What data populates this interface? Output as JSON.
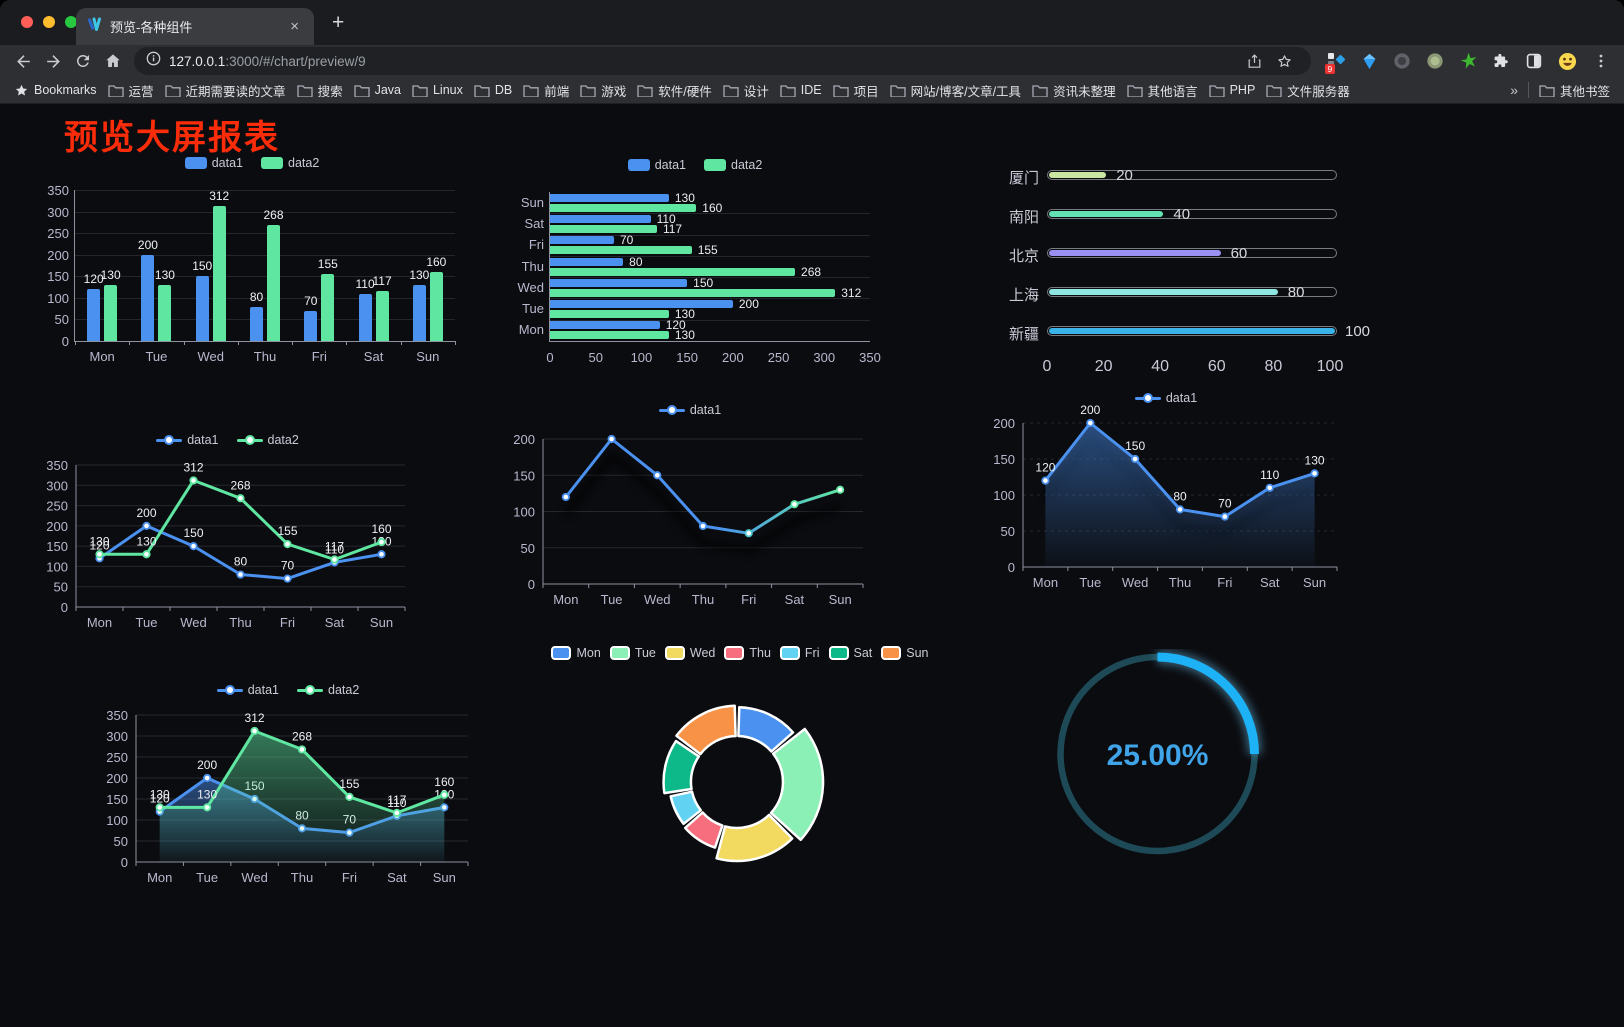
{
  "browser": {
    "tab_title": "预览-各种组件",
    "close_tab_label": "×",
    "new_tab_label": "+",
    "url_host": "127.0.0.1",
    "url_rest": ":3000/#/chart/preview/9",
    "extensions_badge": "9",
    "bookmarks_bar": {
      "star_label": "Bookmarks",
      "folders": [
        "运营",
        "近期需要读的文章",
        "搜索",
        "Java",
        "Linux",
        "DB",
        "前端",
        "游戏",
        "软件/硬件",
        "设计",
        "IDE",
        "项目",
        "网站/博客/文章/工具",
        "资讯未整理",
        "其他语言",
        "PHP",
        "文件服务器"
      ],
      "overflow": "»",
      "other_bookmarks": "其他书签"
    }
  },
  "page": {
    "title": "预览大屏报表",
    "title_color": "#fb2c09",
    "background": "#0b0c10"
  },
  "chart_data": [
    {
      "id": "grouped-bar",
      "type": "bar",
      "orientation": "vertical",
      "legend_position": "top",
      "categories": [
        "Mon",
        "Tue",
        "Wed",
        "Thu",
        "Fri",
        "Sat",
        "Sun"
      ],
      "series": [
        {
          "name": "data1",
          "color": "#4a91f0",
          "values": [
            120,
            200,
            150,
            80,
            70,
            110,
            130
          ]
        },
        {
          "name": "data2",
          "color": "#5fe7a2",
          "values": [
            130,
            130,
            312,
            268,
            155,
            117,
            160
          ]
        }
      ],
      "ylim": [
        0,
        350
      ],
      "yticks": [
        0,
        50,
        100,
        150,
        200,
        250,
        300,
        350
      ],
      "grid": true
    },
    {
      "id": "horizontal-bar",
      "type": "bar",
      "orientation": "horizontal",
      "legend_position": "top",
      "categories": [
        "Mon",
        "Tue",
        "Wed",
        "Thu",
        "Fri",
        "Sat",
        "Sun"
      ],
      "series": [
        {
          "name": "data1",
          "color": "#4a91f0",
          "values": [
            120,
            200,
            150,
            80,
            70,
            110,
            130
          ]
        },
        {
          "name": "data2",
          "color": "#5fe7a2",
          "values": [
            130,
            130,
            312,
            268,
            155,
            117,
            160
          ]
        }
      ],
      "xlim": [
        0,
        350
      ],
      "xticks": [
        0,
        50,
        100,
        150,
        200,
        250,
        300,
        350
      ],
      "grid": true
    },
    {
      "id": "progress",
      "type": "bar",
      "orientation": "horizontal",
      "style": "capsule-progress",
      "categories": [
        "厦门",
        "南阳",
        "北京",
        "上海",
        "新疆"
      ],
      "values": [
        20,
        40,
        60,
        80,
        100
      ],
      "colors": [
        "#cbe7a2",
        "#63e2b4",
        "#9a90f2",
        "#90e6e2",
        "#39b3e8"
      ],
      "xlim": [
        0,
        100
      ],
      "xticks": [
        0,
        20,
        40,
        60,
        80,
        100
      ]
    },
    {
      "id": "line-dual",
      "type": "line",
      "legend_position": "top",
      "show_labels": true,
      "categories": [
        "Mon",
        "Tue",
        "Wed",
        "Thu",
        "Fri",
        "Sat",
        "Sun"
      ],
      "series": [
        {
          "name": "data1",
          "color": "#4a91f0",
          "values": [
            120,
            200,
            150,
            80,
            70,
            110,
            130
          ]
        },
        {
          "name": "data2",
          "color": "#5fe7a2",
          "values": [
            130,
            130,
            312,
            268,
            155,
            117,
            160
          ]
        }
      ],
      "ylim": [
        0,
        350
      ],
      "yticks": [
        0,
        50,
        100,
        150,
        200,
        250,
        300,
        350
      ],
      "grid": true
    },
    {
      "id": "line-gradient",
      "type": "line",
      "legend_position": "top",
      "show_labels": false,
      "shadow": true,
      "categories": [
        "Mon",
        "Tue",
        "Wed",
        "Thu",
        "Fri",
        "Sat",
        "Sun"
      ],
      "series": [
        {
          "name": "data1",
          "color": "#4a91f0",
          "gradient": [
            "#4a91f0",
            "#5fe7a2"
          ],
          "point_colors": [
            "#4a91f0",
            "#4a91f0",
            "#4a91f0",
            "#4a91f0",
            "#4fc8cf",
            "#5fe7a2",
            "#5fe7a2"
          ],
          "values": [
            120,
            200,
            150,
            80,
            70,
            110,
            130
          ]
        }
      ],
      "ylim": [
        0,
        200
      ],
      "yticks": [
        0,
        50,
        100,
        150,
        200
      ],
      "grid": true
    },
    {
      "id": "line-area",
      "type": "line",
      "legend_position": "top",
      "show_labels": true,
      "shadow": true,
      "dashed_grid": true,
      "categories": [
        "Mon",
        "Tue",
        "Wed",
        "Thu",
        "Fri",
        "Sat",
        "Sun"
      ],
      "series": [
        {
          "name": "data1",
          "color": "#4a91f0",
          "area": true,
          "values": [
            120,
            200,
            150,
            80,
            70,
            110,
            130
          ]
        }
      ],
      "ylim": [
        0,
        200
      ],
      "yticks": [
        0,
        50,
        100,
        150,
        200
      ],
      "grid": true
    },
    {
      "id": "line-area-dual",
      "type": "line",
      "legend_position": "top",
      "show_labels": true,
      "categories": [
        "Mon",
        "Tue",
        "Wed",
        "Thu",
        "Fri",
        "Sat",
        "Sun"
      ],
      "series": [
        {
          "name": "data1",
          "color": "#4a91f0",
          "area": true,
          "values": [
            120,
            200,
            150,
            80,
            70,
            110,
            130
          ]
        },
        {
          "name": "data2",
          "color": "#5fe7a2",
          "area": true,
          "values": [
            130,
            130,
            312,
            268,
            155,
            117,
            160
          ]
        }
      ],
      "ylim": [
        0,
        350
      ],
      "yticks": [
        0,
        50,
        100,
        150,
        200,
        250,
        300,
        350
      ],
      "grid": true
    },
    {
      "id": "donut",
      "type": "pie",
      "rose": true,
      "inner_radius_ratio": 0.55,
      "legend_position": "top",
      "categories": [
        "Mon",
        "Tue",
        "Wed",
        "Thu",
        "Fri",
        "Sat",
        "Sun"
      ],
      "values": [
        120,
        200,
        150,
        80,
        70,
        110,
        130
      ],
      "colors": [
        "#4a91f0",
        "#8af0b6",
        "#f2d95f",
        "#f76e7e",
        "#62d2f2",
        "#0db988",
        "#f79246"
      ]
    },
    {
      "id": "gauge",
      "type": "gauge",
      "value": 25,
      "label": "25.00%",
      "bar_color": "#1db2f5",
      "track_color": "#1e4a57",
      "text_color": "#3fa5e8"
    }
  ]
}
